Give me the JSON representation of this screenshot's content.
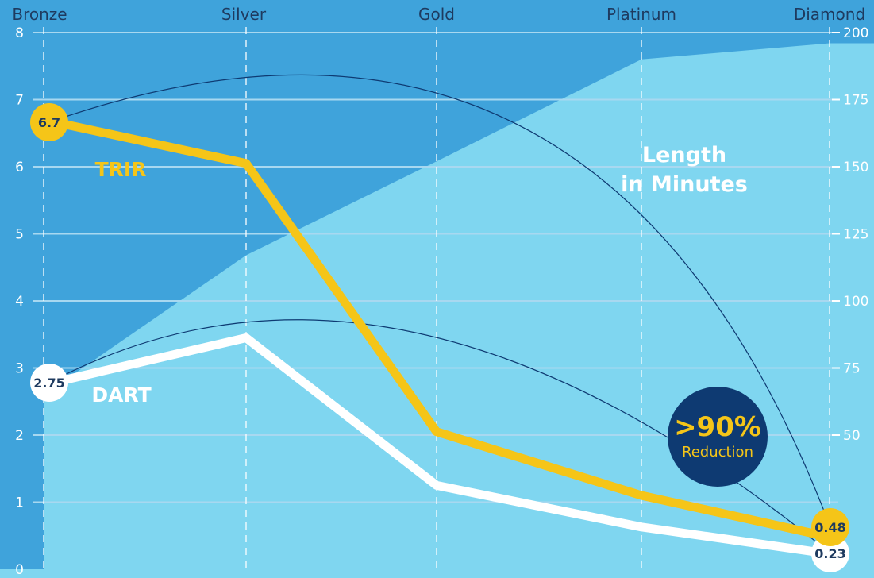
{
  "chart_data": {
    "type": "line",
    "categories": [
      "Bronze",
      "Silver",
      "Gold",
      "Platinum",
      "Diamond"
    ],
    "y_left": {
      "ticks": [
        0,
        1,
        2,
        3,
        4,
        5,
        6,
        7,
        8
      ],
      "range": [
        0,
        8
      ]
    },
    "y_right": {
      "ticks": [
        50,
        75,
        100,
        125,
        150,
        175,
        200
      ],
      "range": [
        0,
        200
      ]
    },
    "series": [
      {
        "name": "TRIR",
        "axis": "left",
        "values": [
          6.7,
          6.05,
          2.05,
          1.1,
          0.48
        ],
        "color": "#F5C518"
      },
      {
        "name": "DART",
        "axis": "left",
        "values": [
          2.75,
          3.45,
          1.25,
          0.63,
          0.23
        ],
        "color": "#FFFFFF"
      },
      {
        "name": "Length in Minutes",
        "axis": "right",
        "type": "area",
        "values": [
          65,
          117,
          152,
          190,
          196
        ],
        "color": "#7FD6F0"
      }
    ],
    "data_labels": {
      "trir_start": "6.7",
      "trir_end": "0.48",
      "dart_start": "2.75",
      "dart_end": "0.23"
    },
    "annotations": {
      "area_label_line1": "Length",
      "area_label_line2": "in Minutes",
      "reduction_value": ">90%",
      "reduction_text": "Reduction"
    },
    "colors": {
      "background": "#3FA3DB",
      "area": "#7FD6F0",
      "grid": "#A8D8F0",
      "trir": "#F5C518",
      "dart": "#FFFFFF",
      "badge": "#0E3A72",
      "label_text": "#1E3A5F"
    },
    "grid": true
  }
}
